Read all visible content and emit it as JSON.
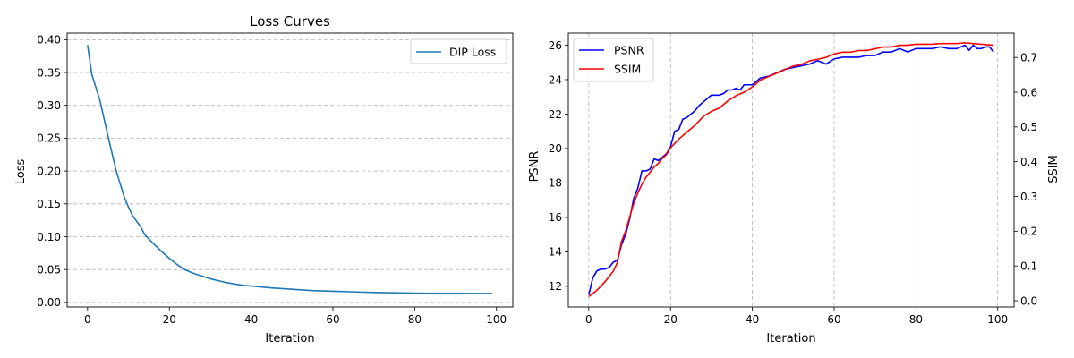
{
  "chart_data": [
    {
      "type": "line",
      "title": "Loss Curves",
      "xlabel": "Iteration",
      "ylabel": "Loss",
      "xlim": [
        -5,
        104
      ],
      "ylim": [
        -0.007,
        0.41
      ],
      "xticks": [
        0,
        20,
        40,
        60,
        80,
        100
      ],
      "yticks": [
        0.0,
        0.05,
        0.1,
        0.15,
        0.2,
        0.25,
        0.3,
        0.35,
        0.4
      ],
      "ytick_labels": [
        "0.00",
        "0.05",
        "0.10",
        "0.15",
        "0.20",
        "0.25",
        "0.30",
        "0.35",
        "0.40"
      ],
      "grid": "horizontal dashed",
      "legend": "top-right",
      "series": [
        {
          "name": "DIP Loss",
          "color": "#1f77b4",
          "x": [
            0,
            1,
            3,
            5,
            7,
            9,
            10,
            11,
            13,
            14,
            16,
            18,
            20,
            22,
            24,
            26,
            28,
            30,
            32,
            34,
            36,
            38,
            40,
            45,
            50,
            55,
            60,
            65,
            70,
            75,
            80,
            85,
            90,
            95,
            99
          ],
          "values": [
            0.392,
            0.348,
            0.308,
            0.253,
            0.2,
            0.16,
            0.145,
            0.132,
            0.115,
            0.103,
            0.09,
            0.078,
            0.067,
            0.057,
            0.049,
            0.044,
            0.04,
            0.036,
            0.033,
            0.03,
            0.028,
            0.026,
            0.025,
            0.022,
            0.02,
            0.018,
            0.017,
            0.016,
            0.015,
            0.0145,
            0.014,
            0.0138,
            0.0137,
            0.0136,
            0.0135
          ]
        }
      ]
    },
    {
      "type": "line",
      "title": "",
      "xlabel": "Iteration",
      "ylabel": "PSNR",
      "y2label": "SSIM",
      "xlim": [
        -5,
        104
      ],
      "ylim": [
        10.8,
        26.7
      ],
      "y2lim": [
        -0.018,
        0.77
      ],
      "xticks": [
        0,
        20,
        40,
        60,
        80,
        100
      ],
      "yticks": [
        12,
        14,
        16,
        18,
        20,
        22,
        24,
        26
      ],
      "y2ticks": [
        0.0,
        0.1,
        0.2,
        0.3,
        0.4,
        0.5,
        0.6,
        0.7
      ],
      "y2tick_labels": [
        "0.0",
        "0.1",
        "0.2",
        "0.3",
        "0.4",
        "0.5",
        "0.6",
        "0.7"
      ],
      "grid": "vertical dashed",
      "legend": "top-left",
      "series": [
        {
          "name": "PSNR",
          "axis": "left",
          "color": "#0000ff",
          "x": [
            0,
            1,
            2,
            3,
            4,
            5,
            6,
            7,
            8,
            9,
            10,
            11,
            12,
            13,
            14,
            15,
            16,
            17,
            18,
            19,
            20,
            21,
            22,
            23,
            24,
            25,
            26,
            27,
            28,
            29,
            30,
            31,
            32,
            33,
            34,
            35,
            36,
            37,
            38,
            39,
            40,
            42,
            44,
            46,
            48,
            50,
            52,
            54,
            56,
            58,
            60,
            62,
            64,
            66,
            68,
            70,
            72,
            74,
            76,
            78,
            80,
            82,
            84,
            86,
            88,
            90,
            91,
            92,
            93,
            94,
            95,
            96,
            97,
            98,
            99
          ],
          "values": [
            11.5,
            12.5,
            12.9,
            13.0,
            13.0,
            13.1,
            13.4,
            13.5,
            14.4,
            15.0,
            15.9,
            17.1,
            17.7,
            18.7,
            18.7,
            18.8,
            19.4,
            19.3,
            19.5,
            19.7,
            20.1,
            21.0,
            21.1,
            21.7,
            21.8,
            22.0,
            22.2,
            22.5,
            22.7,
            22.9,
            23.1,
            23.1,
            23.1,
            23.2,
            23.4,
            23.4,
            23.5,
            23.4,
            23.7,
            23.7,
            23.7,
            24.1,
            24.2,
            24.4,
            24.6,
            24.7,
            24.8,
            24.9,
            25.1,
            24.9,
            25.2,
            25.3,
            25.3,
            25.3,
            25.4,
            25.4,
            25.6,
            25.6,
            25.8,
            25.6,
            25.8,
            25.8,
            25.8,
            25.9,
            25.8,
            25.8,
            25.9,
            26.0,
            25.7,
            26.0,
            25.8,
            25.8,
            25.9,
            25.9,
            25.6
          ]
        },
        {
          "name": "SSIM",
          "axis": "right",
          "color": "#ff0000",
          "x": [
            0,
            2,
            4,
            6,
            7,
            8,
            9,
            10,
            11,
            12,
            13,
            14,
            15,
            16,
            17,
            18,
            19,
            20,
            22,
            24,
            26,
            28,
            30,
            32,
            34,
            36,
            38,
            40,
            42,
            44,
            46,
            48,
            50,
            52,
            54,
            56,
            58,
            60,
            62,
            64,
            66,
            68,
            70,
            72,
            74,
            76,
            78,
            80,
            82,
            84,
            86,
            88,
            90,
            92,
            94,
            96,
            99
          ],
          "values": [
            0.012,
            0.03,
            0.055,
            0.085,
            0.11,
            0.17,
            0.2,
            0.24,
            0.28,
            0.31,
            0.335,
            0.355,
            0.37,
            0.385,
            0.395,
            0.41,
            0.42,
            0.44,
            0.465,
            0.485,
            0.505,
            0.53,
            0.545,
            0.555,
            0.575,
            0.59,
            0.6,
            0.615,
            0.635,
            0.645,
            0.655,
            0.665,
            0.675,
            0.68,
            0.69,
            0.695,
            0.7,
            0.71,
            0.715,
            0.715,
            0.72,
            0.72,
            0.725,
            0.73,
            0.73,
            0.735,
            0.735,
            0.738,
            0.738,
            0.738,
            0.74,
            0.74,
            0.74,
            0.742,
            0.74,
            0.738,
            0.735
          ]
        }
      ]
    }
  ]
}
